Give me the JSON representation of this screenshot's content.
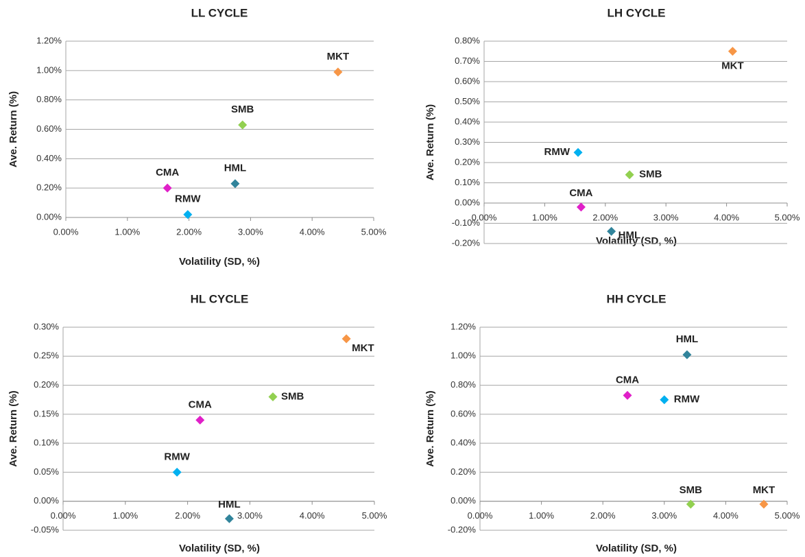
{
  "chart_data": [
    {
      "type": "scatter",
      "title": "LL CYCLE",
      "x_label": "Volatility (SD, %)",
      "y_label": "Ave. Return (%)",
      "xlim": [
        0,
        5
      ],
      "xticks": [
        {
          "value": 0,
          "label": "0.00%"
        },
        {
          "value": 1,
          "label": "1.00%"
        },
        {
          "value": 2,
          "label": "2.00%"
        },
        {
          "value": 3,
          "label": "3.00%"
        },
        {
          "value": 4,
          "label": "4.00%"
        },
        {
          "value": 5,
          "label": "5.00%"
        }
      ],
      "ylim": [
        0,
        1.2
      ],
      "yticks": [
        {
          "value": 0,
          "label": "0.00%"
        },
        {
          "value": 0.2,
          "label": "0.20%"
        },
        {
          "value": 0.4,
          "label": "0.40%"
        },
        {
          "value": 0.6,
          "label": "0.60%"
        },
        {
          "value": 0.8,
          "label": "0.80%"
        },
        {
          "value": 1,
          "label": "1.00%"
        },
        {
          "value": 1.2,
          "label": "1.20%"
        }
      ],
      "grid": true,
      "series": [
        {
          "name": "MKT",
          "color": "#f79646",
          "x": [
            4.42
          ],
          "values": [
            0.99
          ]
        },
        {
          "name": "SMB",
          "color": "#92d050",
          "x": [
            2.87
          ],
          "values": [
            0.63
          ]
        },
        {
          "name": "HML",
          "color": "#31849b",
          "x": [
            2.75
          ],
          "values": [
            0.23
          ]
        },
        {
          "name": "CMA",
          "color": "#e020c8",
          "x": [
            1.65
          ],
          "values": [
            0.2
          ]
        },
        {
          "name": "RMW",
          "color": "#00b0f0",
          "x": [
            1.98
          ],
          "values": [
            0.02
          ]
        }
      ]
    },
    {
      "type": "scatter",
      "title": "LH CYCLE",
      "x_label": "Volatility (SD, %)",
      "y_label": "Ave. Return (%)",
      "xlim": [
        0,
        5
      ],
      "xticks": [
        {
          "value": 0,
          "label": "0.00%"
        },
        {
          "value": 1,
          "label": "1.00%"
        },
        {
          "value": 2,
          "label": "2.00%"
        },
        {
          "value": 3,
          "label": "3.00%"
        },
        {
          "value": 4,
          "label": "4.00%"
        },
        {
          "value": 5,
          "label": "5.00%"
        }
      ],
      "ylim": [
        -0.2,
        0.8
      ],
      "yticks": [
        {
          "value": -0.2,
          "label": "-0.20%"
        },
        {
          "value": -0.1,
          "label": "-0.10%"
        },
        {
          "value": 0,
          "label": "0.00%"
        },
        {
          "value": 0.1,
          "label": "0.10%"
        },
        {
          "value": 0.2,
          "label": "0.20%"
        },
        {
          "value": 0.3,
          "label": "0.30%"
        },
        {
          "value": 0.4,
          "label": "0.40%"
        },
        {
          "value": 0.5,
          "label": "0.50%"
        },
        {
          "value": 0.6,
          "label": "0.60%"
        },
        {
          "value": 0.7,
          "label": "0.70%"
        },
        {
          "value": 0.8,
          "label": "0.80%"
        }
      ],
      "grid": true,
      "series": [
        {
          "name": "MKT",
          "color": "#f79646",
          "x": [
            4.1
          ],
          "values": [
            0.75
          ]
        },
        {
          "name": "RMW",
          "color": "#00b0f0",
          "x": [
            1.55
          ],
          "values": [
            0.25
          ]
        },
        {
          "name": "SMB",
          "color": "#92d050",
          "x": [
            2.4
          ],
          "values": [
            0.14
          ]
        },
        {
          "name": "CMA",
          "color": "#e020c8",
          "x": [
            1.6
          ],
          "values": [
            -0.02
          ]
        },
        {
          "name": "HML",
          "color": "#31849b",
          "x": [
            2.1
          ],
          "values": [
            -0.14
          ]
        }
      ]
    },
    {
      "type": "scatter",
      "title": "HL CYCLE",
      "x_label": "Volatility (SD, %)",
      "y_label": "Ave. Return (%)",
      "xlim": [
        0,
        5
      ],
      "xticks": [
        {
          "value": 0,
          "label": "0.00%"
        },
        {
          "value": 1,
          "label": "1.00%"
        },
        {
          "value": 2,
          "label": "2.00%"
        },
        {
          "value": 3,
          "label": "3.00%"
        },
        {
          "value": 4,
          "label": "4.00%"
        },
        {
          "value": 5,
          "label": "5.00%"
        }
      ],
      "ylim": [
        -0.05,
        0.3
      ],
      "yticks": [
        {
          "value": -0.05,
          "label": "-0.05%"
        },
        {
          "value": 0,
          "label": "0.00%"
        },
        {
          "value": 0.05,
          "label": "0.05%"
        },
        {
          "value": 0.1,
          "label": "0.10%"
        },
        {
          "value": 0.15,
          "label": "0.15%"
        },
        {
          "value": 0.2,
          "label": "0.20%"
        },
        {
          "value": 0.25,
          "label": "0.25%"
        },
        {
          "value": 0.3,
          "label": "0.30%"
        }
      ],
      "grid": true,
      "series": [
        {
          "name": "MKT",
          "color": "#f79646",
          "x": [
            4.55
          ],
          "values": [
            0.28
          ]
        },
        {
          "name": "SMB",
          "color": "#92d050",
          "x": [
            3.37
          ],
          "values": [
            0.18
          ]
        },
        {
          "name": "CMA",
          "color": "#e020c8",
          "x": [
            2.2
          ],
          "values": [
            0.14
          ]
        },
        {
          "name": "RMW",
          "color": "#00b0f0",
          "x": [
            1.83
          ],
          "values": [
            0.05
          ]
        },
        {
          "name": "HML",
          "color": "#31849b",
          "x": [
            2.67
          ],
          "values": [
            -0.03
          ]
        }
      ]
    },
    {
      "type": "scatter",
      "title": "HH CYCLE",
      "x_label": "Volatility (SD, %)",
      "y_label": "Ave. Return (%)",
      "xlim": [
        0,
        5
      ],
      "xticks": [
        {
          "value": 0,
          "label": "0.00%"
        },
        {
          "value": 1,
          "label": "1.00%"
        },
        {
          "value": 2,
          "label": "2.00%"
        },
        {
          "value": 3,
          "label": "3.00%"
        },
        {
          "value": 4,
          "label": "4.00%"
        },
        {
          "value": 5,
          "label": "5.00%"
        }
      ],
      "ylim": [
        -0.2,
        1.2
      ],
      "yticks": [
        {
          "value": -0.2,
          "label": "-0.20%"
        },
        {
          "value": 0,
          "label": "0.00%"
        },
        {
          "value": 0.2,
          "label": "0.20%"
        },
        {
          "value": 0.4,
          "label": "0.40%"
        },
        {
          "value": 0.6,
          "label": "0.60%"
        },
        {
          "value": 0.8,
          "label": "0.80%"
        },
        {
          "value": 1,
          "label": "1.00%"
        },
        {
          "value": 1.2,
          "label": "1.20%"
        }
      ],
      "grid": true,
      "series": [
        {
          "name": "HML",
          "color": "#31849b",
          "x": [
            3.37
          ],
          "values": [
            1.01
          ]
        },
        {
          "name": "CMA",
          "color": "#e020c8",
          "x": [
            2.4
          ],
          "values": [
            0.73
          ]
        },
        {
          "name": "RMW",
          "color": "#00b0f0",
          "x": [
            3.0
          ],
          "values": [
            0.7
          ]
        },
        {
          "name": "SMB",
          "color": "#92d050",
          "x": [
            3.43
          ],
          "values": [
            -0.02
          ]
        },
        {
          "name": "MKT",
          "color": "#f79646",
          "x": [
            4.62
          ],
          "values": [
            -0.02
          ]
        }
      ]
    }
  ]
}
